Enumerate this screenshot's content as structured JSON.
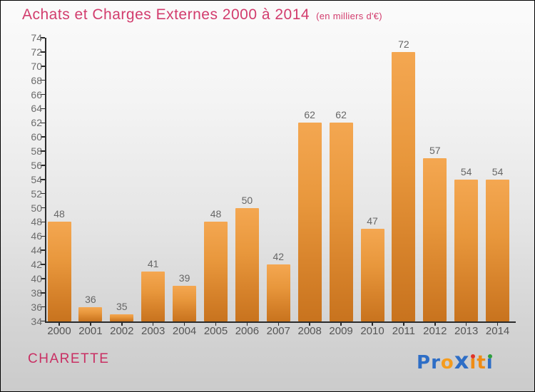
{
  "header": {
    "title": "Achats et Charges Externes 2000 à 2014",
    "subtitle": "(en milliers d'€)"
  },
  "chart_data": {
    "type": "bar",
    "title": "Achats et Charges Externes 2000 à 2014",
    "subtitle": "(en milliers d'€)",
    "categories": [
      "2000",
      "2001",
      "2002",
      "2003",
      "2004",
      "2005",
      "2006",
      "2007",
      "2008",
      "2009",
      "2010",
      "2011",
      "2012",
      "2013",
      "2014"
    ],
    "values": [
      48,
      36,
      35,
      41,
      39,
      48,
      50,
      42,
      62,
      62,
      47,
      72,
      57,
      54,
      54
    ],
    "xlabel": "",
    "ylabel": "",
    "ylim": [
      34,
      74
    ],
    "ytick_step": 2,
    "grid": false,
    "legend": null,
    "value_labels_shown": true
  },
  "footer": {
    "company": "CHARETTE",
    "logo_text": "Proxiti",
    "logo_letters": [
      {
        "text": "P",
        "color": "#2e6ec6"
      },
      {
        "text": "r",
        "color": "#2e6ec6"
      },
      {
        "text": "o",
        "color": "#f59c1e"
      },
      {
        "text": "x",
        "color": "#2e6ec6",
        "style": "x-mark"
      },
      {
        "text": "ı",
        "color": "#ef8c15",
        "dot": "#e03428"
      },
      {
        "text": "t",
        "color": "#ef8c15"
      },
      {
        "text": "ı",
        "color": "#2e6ec6",
        "dot": "#2f9e3f"
      }
    ]
  },
  "colors": {
    "title": "#d23c6d",
    "company": "#c92f63",
    "bar_top": "#f4a751",
    "bar_bottom": "#c8731e",
    "axis": "#2a2a2a",
    "tick_label": "#6b6b6b",
    "value_label": "#666666",
    "year_label": "#555555"
  }
}
